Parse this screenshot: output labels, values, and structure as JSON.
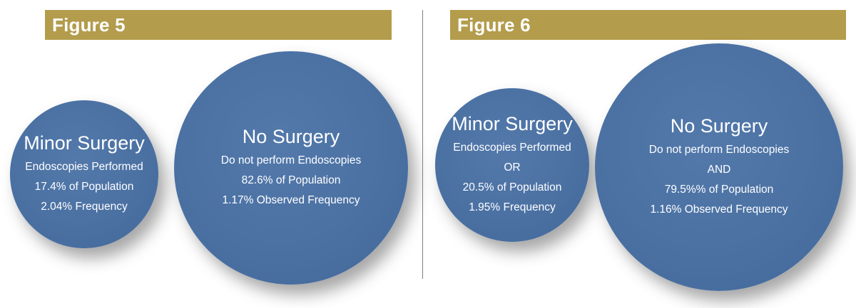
{
  "figures": [
    {
      "label": "Figure 5",
      "circles": [
        {
          "title": "Minor Surgery",
          "lines": [
            "Endoscopies Performed",
            "17.4% of Population",
            "2.04% Frequency"
          ]
        },
        {
          "title": "No Surgery",
          "lines": [
            "Do not perform Endoscopies",
            "82.6% of Population",
            "1.17% Observed Frequency"
          ]
        }
      ]
    },
    {
      "label": "Figure 6",
      "circles": [
        {
          "title": "Minor Surgery",
          "lines": [
            "Endoscopies Performed",
            "OR",
            "20.5% of Population",
            "1.95% Frequency"
          ]
        },
        {
          "title": "No Surgery",
          "lines": [
            "Do not perform Endoscopies",
            "AND",
            "79.5%% of Population",
            "1.16% Observed Frequency"
          ]
        }
      ]
    }
  ],
  "colors": {
    "banner": "#b39c4c",
    "circle": "#4b71a3",
    "text": "#ffffff"
  }
}
